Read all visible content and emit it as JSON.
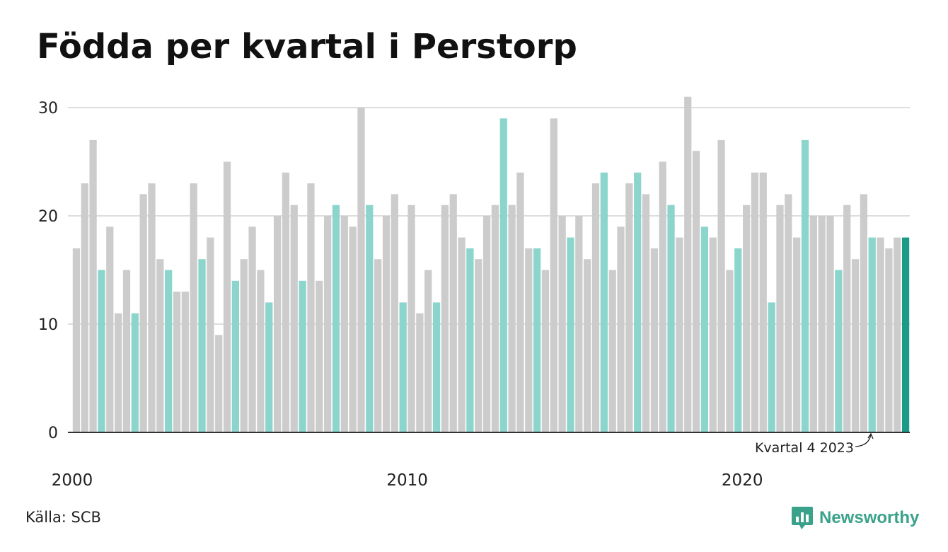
{
  "title": "Födda per kvartal i Perstorp",
  "source": "Källa: SCB",
  "brand": "Newsworthy",
  "colors": {
    "default_bar": "#cccccc",
    "q4_bar": "#8cd5cc",
    "latest_bar": "#1a9a87",
    "gridline": "#dddddd",
    "axis": "#333333",
    "brand": "#3aa28a"
  },
  "chart_data": {
    "type": "bar",
    "title": "Födda per kvartal i Perstorp",
    "xlabel": "",
    "ylabel": "",
    "ylim": [
      0,
      30
    ],
    "yticks": [
      "0",
      "10",
      "20",
      "30"
    ],
    "xticks": [
      "2000",
      "2010",
      "2020"
    ],
    "grid": true,
    "annotation": "Kvartal 4 2023",
    "series": [
      {
        "x": [
          "2000 Q1",
          "2000 Q2",
          "2000 Q3",
          "2000 Q4",
          "2001 Q1",
          "2001 Q2",
          "2001 Q3",
          "2001 Q4",
          "2002 Q1",
          "2002 Q2",
          "2002 Q3",
          "2002 Q4",
          "2003 Q1",
          "2003 Q2",
          "2003 Q3",
          "2003 Q4",
          "2004 Q1",
          "2004 Q2",
          "2004 Q3",
          "2004 Q4",
          "2005 Q1",
          "2005 Q2",
          "2005 Q3",
          "2005 Q4",
          "2006 Q1",
          "2006 Q2",
          "2006 Q3",
          "2006 Q4",
          "2007 Q1",
          "2007 Q2",
          "2007 Q3",
          "2007 Q4",
          "2008 Q1",
          "2008 Q2",
          "2008 Q3",
          "2008 Q4",
          "2009 Q1",
          "2009 Q2",
          "2009 Q3",
          "2009 Q4",
          "2010 Q1",
          "2010 Q2",
          "2010 Q3",
          "2010 Q4",
          "2011 Q1",
          "2011 Q2",
          "2011 Q3",
          "2011 Q4",
          "2012 Q1",
          "2012 Q2",
          "2012 Q3",
          "2012 Q4",
          "2013 Q1",
          "2013 Q2",
          "2013 Q3",
          "2013 Q4",
          "2014 Q1",
          "2014 Q2",
          "2014 Q3",
          "2014 Q4",
          "2015 Q1",
          "2015 Q2",
          "2015 Q3",
          "2015 Q4",
          "2016 Q1",
          "2016 Q2",
          "2016 Q3",
          "2016 Q4",
          "2017 Q1",
          "2017 Q2",
          "2017 Q3",
          "2017 Q4",
          "2018 Q1",
          "2018 Q2",
          "2018 Q3",
          "2018 Q4",
          "2019 Q1",
          "2019 Q2",
          "2019 Q3",
          "2019 Q4",
          "2020 Q1",
          "2020 Q2",
          "2020 Q3",
          "2020 Q4",
          "2021 Q1",
          "2021 Q2",
          "2021 Q3",
          "2021 Q4",
          "2022 Q1",
          "2022 Q2",
          "2022 Q3",
          "2022 Q4",
          "2023 Q1",
          "2023 Q2",
          "2023 Q3",
          "2023 Q4"
        ],
        "values": [
          17,
          23,
          27,
          15,
          19,
          11,
          15,
          11,
          22,
          23,
          16,
          15,
          13,
          13,
          23,
          16,
          18,
          9,
          25,
          14,
          16,
          19,
          15,
          12,
          20,
          24,
          21,
          14,
          23,
          14,
          20,
          21,
          20,
          19,
          30,
          21,
          16,
          20,
          22,
          12,
          21,
          11,
          15,
          12,
          21,
          22,
          18,
          17,
          16,
          20,
          21,
          29,
          21,
          24,
          17,
          17,
          15,
          29,
          20,
          18,
          20,
          16,
          23,
          24,
          15,
          19,
          23,
          24,
          22,
          17,
          25,
          21,
          18,
          31,
          26,
          19,
          18,
          27,
          15,
          17,
          21,
          24,
          24,
          12,
          21,
          22,
          18,
          27,
          20,
          20,
          20,
          15,
          21,
          16,
          22,
          18
        ]
      }
    ],
    "extra_trailing_values": [
      18,
      17,
      18,
      18
    ]
  }
}
